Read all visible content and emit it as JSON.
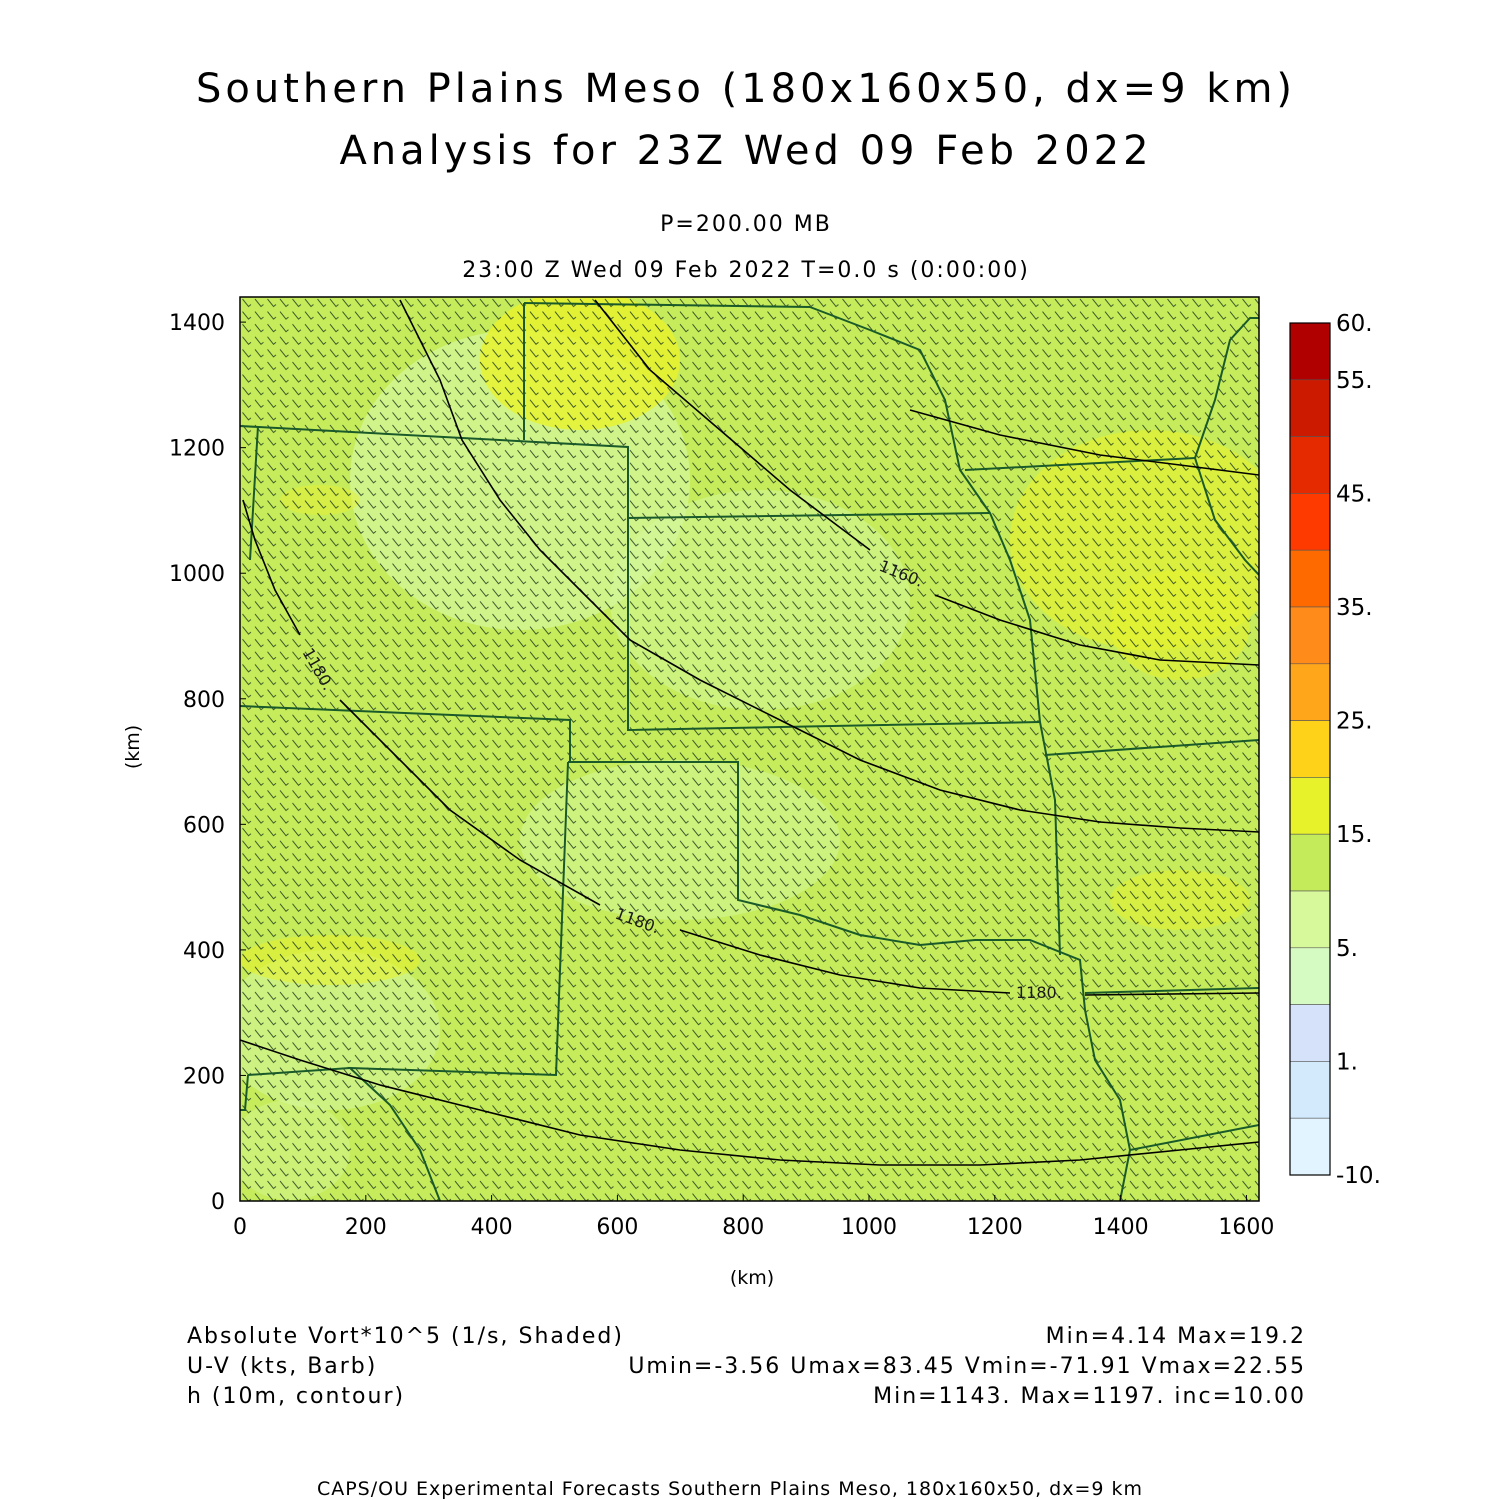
{
  "header": {
    "title_line1": "Southern Plains Meso (180x160x50, dx=9 km)",
    "title_line2": "Analysis for 23Z Wed 09 Feb 2022",
    "level": "P=200.00 MB",
    "valid_time": "23:00 Z Wed 09 Feb 2022   T=0.0 s (0:00:00)"
  },
  "axes": {
    "x_label": "(km)",
    "y_label": "(km)",
    "x_ticks": [
      "0",
      "200",
      "400",
      "600",
      "800",
      "1000",
      "1200",
      "1400",
      "1600"
    ],
    "y_ticks": [
      "0",
      "200",
      "400",
      "600",
      "800",
      "1000",
      "1200",
      "1400"
    ],
    "x_range": [
      0,
      1620
    ],
    "y_range": [
      0,
      1440
    ]
  },
  "colorbar": {
    "labels": [
      "60.",
      "55.",
      "45.",
      "35.",
      "25.",
      "15.",
      "5.",
      "1.",
      "-10."
    ],
    "colors": [
      "#b00000",
      "#cc1a00",
      "#e62a00",
      "#ff3a00",
      "#ff6a00",
      "#ff8c1a",
      "#ffa61a",
      "#ffd21a",
      "#e8f22a",
      "#c4ec5a",
      "#d8f89c",
      "#d6fbc2",
      "#d6e2fa",
      "#d2eafc",
      "#e2f4ff"
    ]
  },
  "contour_labels": [
    "1160.",
    "1180.",
    "1180.",
    "1180."
  ],
  "field": {
    "base_color": "#c6ec5c",
    "light_color": "#d4f79a",
    "yellow_color": "#e8f22a",
    "boundary_color": "#1a5a2a",
    "contour_color": "#000000",
    "barb_color": "#1e3a1e"
  },
  "footer": {
    "var1_name": "Absolute Vort*10^5 (1/s, Shaded)",
    "var1_stats": "Min=4.14 Max=19.2",
    "var2_name": "U-V (kts, Barb)",
    "var2_stats": "Umin=-3.56 Umax=83.45 Vmin=-71.91 Vmax=22.55",
    "var3_name": "h (10m, contour)",
    "var3_stats": "Min=1143. Max=1197. inc=10.00",
    "credit": "CAPS/OU Experimental Forecasts  Southern Plains Meso, 180x160x50, dx=9 km"
  }
}
